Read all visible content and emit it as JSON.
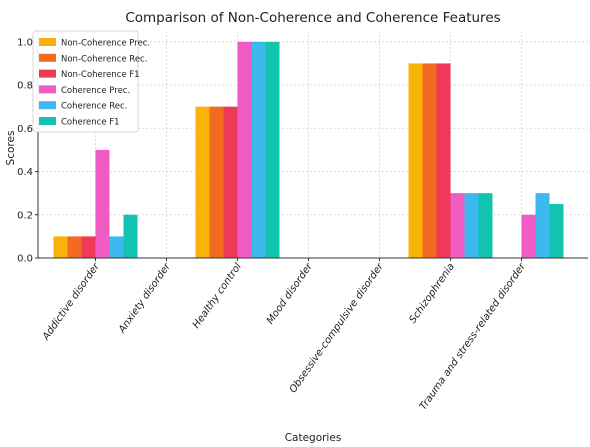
{
  "chart_data": {
    "type": "bar",
    "title": "Comparison of Non-Coherence and Coherence Features",
    "xlabel": "Categories",
    "ylabel": "Scores",
    "ylim": [
      0,
      1.05
    ],
    "yticks": [
      "0.0",
      "0.2",
      "0.4",
      "0.6",
      "0.8",
      "1.0"
    ],
    "grid": true,
    "legend_position": "top-left",
    "categories": [
      "Addictive disorder",
      "Anxiety disorder",
      "Healthy control",
      "Mood disorder",
      "Obsessive-compulsive disorder",
      "Schizophrenia",
      "Trauma and stress-related disorder"
    ],
    "series": [
      {
        "name": "Non-Coherence Prec.",
        "color": "#F9B208",
        "values": [
          0.1,
          0,
          0.7,
          0,
          0,
          0.9,
          0
        ]
      },
      {
        "name": "Non-Coherence Rec.",
        "color": "#F36A21",
        "values": [
          0.1,
          0,
          0.7,
          0,
          0,
          0.9,
          0
        ]
      },
      {
        "name": "Non-Coherence F1",
        "color": "#EE3A57",
        "values": [
          0.1,
          0,
          0.7,
          0,
          0,
          0.9,
          0
        ]
      },
      {
        "name": "Coherence Prec.",
        "color": "#F15BC4",
        "values": [
          0.5,
          0,
          1.0,
          0,
          0,
          0.3,
          0.2
        ]
      },
      {
        "name": "Coherence Rec.",
        "color": "#3CB9EE",
        "values": [
          0.1,
          0,
          1.0,
          0,
          0,
          0.3,
          0.3
        ]
      },
      {
        "name": "Coherence F1",
        "color": "#12C4B0",
        "values": [
          0.2,
          0,
          1.0,
          0,
          0,
          0.3,
          0.25
        ]
      }
    ]
  }
}
